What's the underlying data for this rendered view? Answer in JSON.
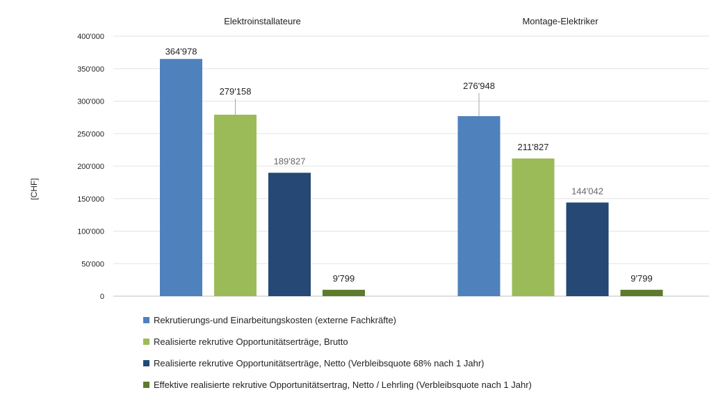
{
  "chart_data": {
    "type": "bar",
    "ylabel": "[CHF]",
    "ylim": [
      0,
      400000
    ],
    "yticks": [
      {
        "value": 0,
        "label": "0"
      },
      {
        "value": 50000,
        "label": "50'000"
      },
      {
        "value": 100000,
        "label": "100'000"
      },
      {
        "value": 150000,
        "label": "150'000"
      },
      {
        "value": 200000,
        "label": "200'000"
      },
      {
        "value": 250000,
        "label": "250'000"
      },
      {
        "value": 300000,
        "label": "300'000"
      },
      {
        "value": 350000,
        "label": "350'000"
      },
      {
        "value": 400000,
        "label": "400'000"
      }
    ],
    "grid": true,
    "legend_position": "bottom-left",
    "categories": [
      "Elektroinstallateure",
      "Montage-Elektriker"
    ],
    "series": [
      {
        "name": "Rekrutierungs-und Einarbeitungskosten (externe Fachkräfte)",
        "color": "#4f81bd",
        "label_color": "#222222",
        "values": [
          364978,
          276948
        ],
        "labels": [
          "364'978",
          "276'948"
        ]
      },
      {
        "name": "Realisierte rekrutive Opportunitätserträge, Brutto",
        "color": "#9bbb59",
        "label_color": "#222222",
        "values": [
          279158,
          211827
        ],
        "labels": [
          "279'158",
          "211'827"
        ]
      },
      {
        "name": "Realisierte rekrutive Opportunitätserträge, Netto  (Verbleibsquote 68%  nach 1 Jahr)",
        "color": "#254874",
        "label_color": "#666666",
        "values": [
          189827,
          144042
        ],
        "labels": [
          "189'827",
          "144'042"
        ]
      },
      {
        "name": "Effektive realisierte rekrutive Opportunitätsertrag, Netto / Lehrling (Verbleibsquote nach 1 Jahr)",
        "color": "#5e7a2c",
        "label_color": "#222222",
        "values": [
          9799,
          9799
        ],
        "labels": [
          "9'799",
          "9'799"
        ]
      }
    ]
  }
}
